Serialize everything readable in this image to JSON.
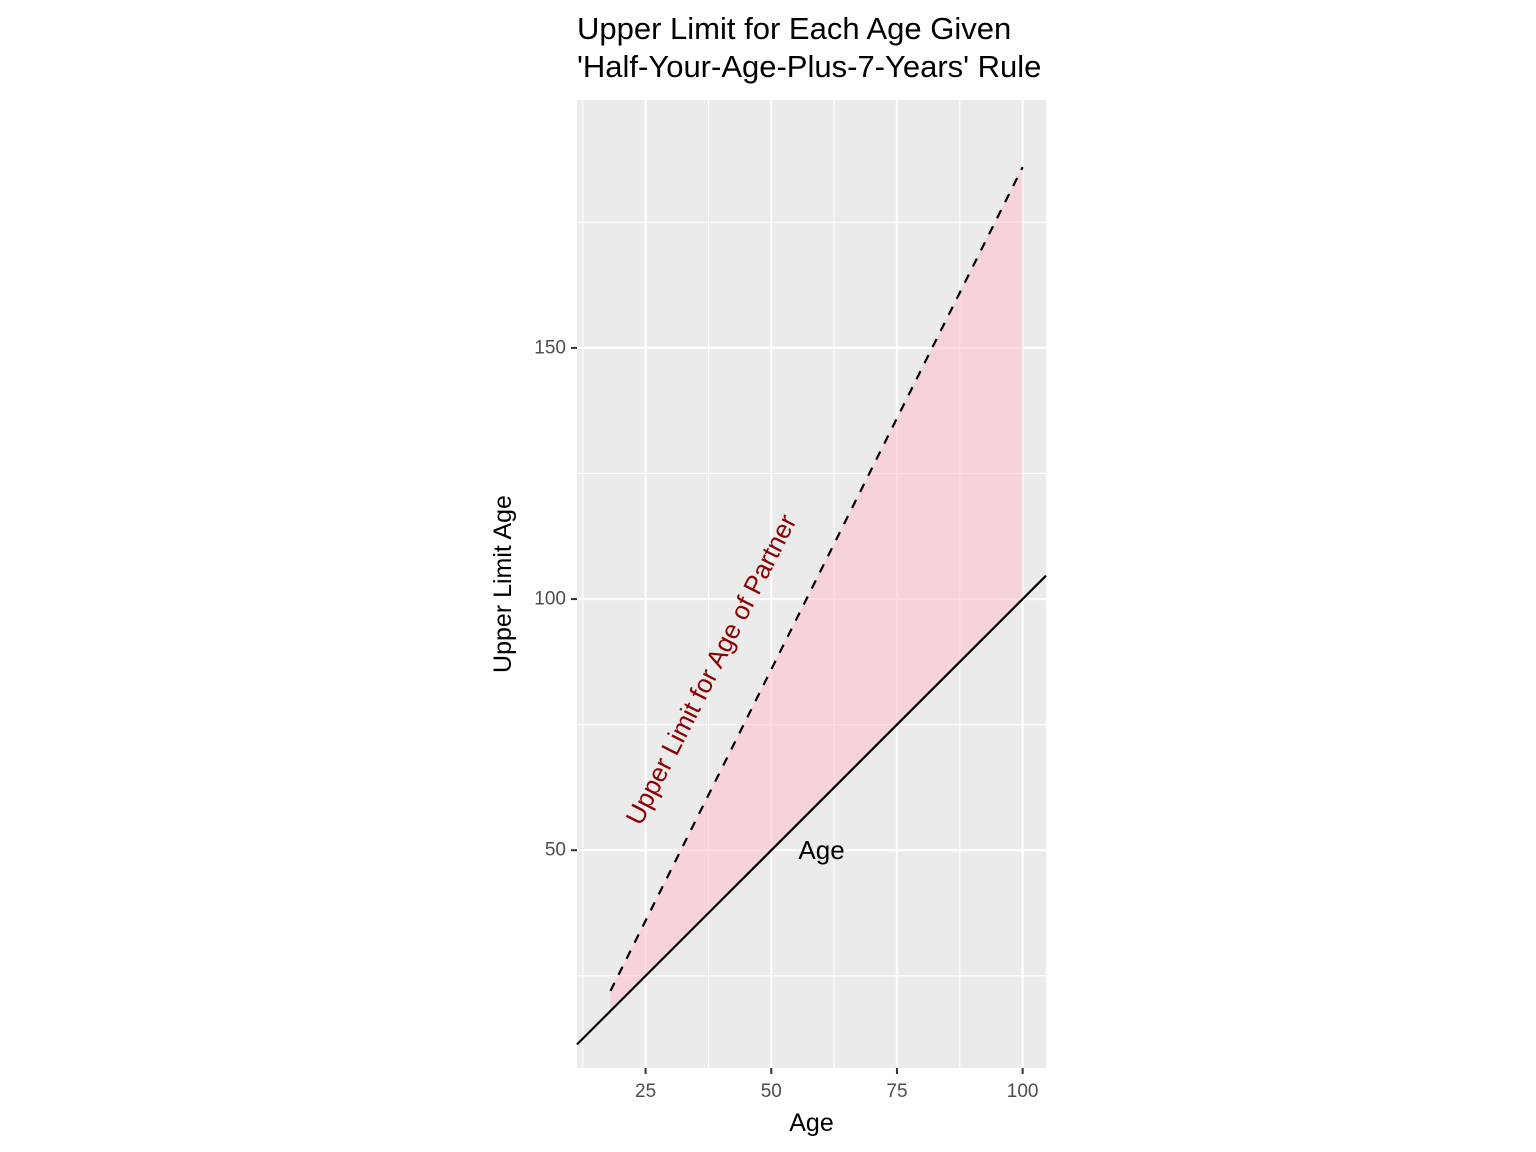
{
  "chart_data": {
    "type": "area",
    "title_line1": "Upper Limit for Each Age Given",
    "title_line2": "'Half-Your-Age-Plus-7-Years' Rule",
    "xlabel": "Age",
    "ylabel": "Upper Limit Age",
    "xlim": [
      11.35,
      104.65
    ],
    "ylim": [
      6.65,
      199.35
    ],
    "x_ticks": [
      25,
      50,
      75,
      100
    ],
    "x_tick_labels": [
      "25",
      "50",
      "75",
      "100"
    ],
    "y_ticks": [
      50,
      100,
      150
    ],
    "y_tick_labels": [
      "50",
      "100",
      "150"
    ],
    "grid": true,
    "series": [
      {
        "type": "line",
        "style": "dashed",
        "color": "#000000",
        "x": [
          18,
          100
        ],
        "y": [
          22,
          186
        ]
      },
      {
        "type": "abline",
        "style": "solid",
        "color": "#000000",
        "intercept": 0,
        "slope": 1
      }
    ],
    "ribbon": {
      "fill": "#FFC0CB",
      "x": [
        18,
        100
      ],
      "ymin": [
        18,
        100
      ],
      "ymax": [
        22,
        186
      ]
    },
    "annotations": [
      {
        "text": "Upper Limit for Age of Partner",
        "x": 38,
        "y": 86,
        "angle": -63,
        "color": "#8B0000"
      },
      {
        "text": "Age",
        "x": 60,
        "y": 50,
        "angle": 0,
        "color": "#000000"
      }
    ],
    "colors": {
      "panel_background": "#EBEBEB",
      "grid_line": "#FFFFFF",
      "ribbon_fill": "#FFC0CB",
      "annotation_red": "#8B0000",
      "tick_text": "#4D4D4D",
      "tick_mark": "#333333"
    }
  }
}
